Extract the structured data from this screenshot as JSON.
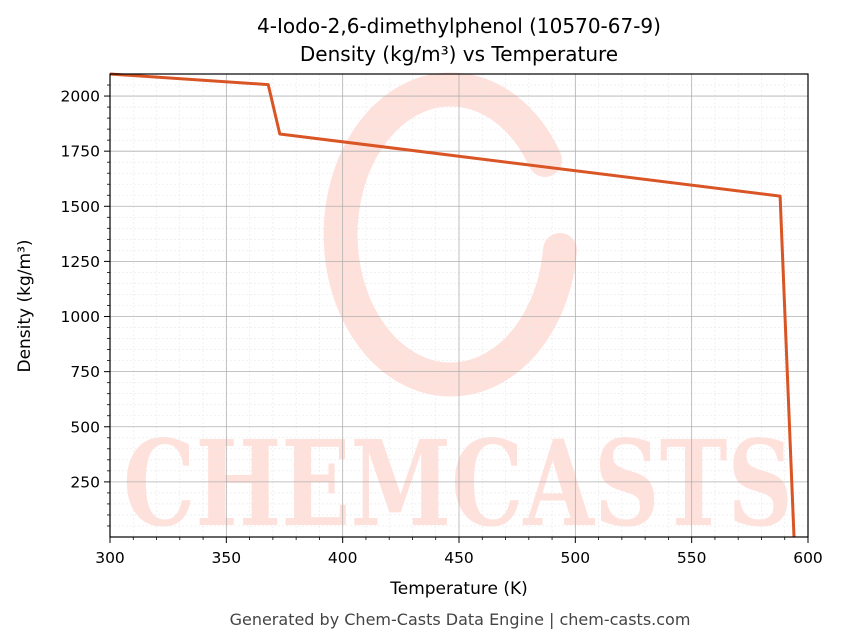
{
  "chart_data": {
    "type": "line",
    "title": "4-Iodo-2,6-dimethylphenol (10570-67-9)",
    "subtitle": "Density (kg/m³) vs Temperature",
    "xlabel": "Temperature (K)",
    "ylabel": "Density (kg/m³)",
    "xlim": [
      300,
      600
    ],
    "ylim": [
      0,
      2100
    ],
    "xticks": [
      300,
      350,
      400,
      450,
      500,
      550,
      600
    ],
    "yticks": [
      250,
      500,
      750,
      1000,
      1250,
      1500,
      1750,
      2000
    ],
    "grid": true,
    "series": [
      {
        "color": "#d95525",
        "x": [
          300,
          368,
          373,
          588,
          594
        ],
        "y": [
          2100,
          2052,
          1828,
          1546,
          0
        ]
      }
    ]
  },
  "watermark": {
    "text": "CHEMCASTS",
    "color": "#ffe1dc"
  },
  "footer": "Generated by Chem-Casts Data Engine | chem-casts.com"
}
